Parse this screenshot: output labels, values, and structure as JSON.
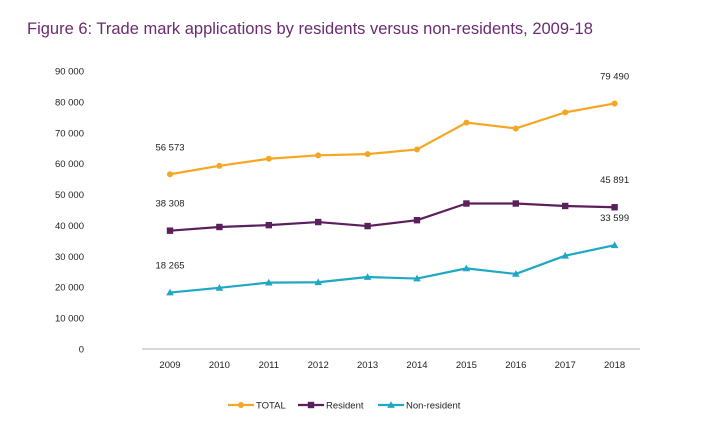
{
  "chart_data": {
    "type": "line",
    "title": "Figure 6: Trade mark applications by residents versus non-residents, 2009-18",
    "xlabel": "",
    "ylabel": "",
    "categories": [
      "2009",
      "2010",
      "2011",
      "2012",
      "2013",
      "2014",
      "2015",
      "2016",
      "2017",
      "2018"
    ],
    "ylim": [
      0,
      90000
    ],
    "y_ticks": [
      0,
      10000,
      20000,
      30000,
      40000,
      50000,
      60000,
      70000,
      80000,
      90000
    ],
    "y_tick_labels": [
      "0",
      "10 000",
      "20 000",
      "30 000",
      "40 000",
      "50 000",
      "60 000",
      "70 000",
      "80 000",
      "90 000"
    ],
    "grid": false,
    "legend_position": "bottom",
    "series": [
      {
        "name": "TOTAL",
        "color": "#f5a623",
        "marker": "circle",
        "values": [
          56573,
          59300,
          61600,
          62700,
          63100,
          64600,
          73300,
          71400,
          76600,
          79490
        ],
        "labels": [
          {
            "index": 0,
            "text": "56 573"
          },
          {
            "index": 9,
            "text": "79 490"
          }
        ]
      },
      {
        "name": "Resident",
        "color": "#5c1f5e",
        "marker": "square",
        "values": [
          38308,
          39500,
          40100,
          41100,
          39800,
          41700,
          47100,
          47100,
          46300,
          45891
        ],
        "labels": [
          {
            "index": 0,
            "text": "38 308"
          },
          {
            "index": 9,
            "text": "45 891"
          }
        ]
      },
      {
        "name": "Non-resident",
        "color": "#1fa8c4",
        "marker": "triangle",
        "values": [
          18265,
          19800,
          21500,
          21600,
          23300,
          22800,
          26100,
          24300,
          30200,
          33599
        ],
        "labels": [
          {
            "index": 0,
            "text": "18 265"
          },
          {
            "index": 9,
            "text": "33 599"
          }
        ]
      }
    ]
  }
}
